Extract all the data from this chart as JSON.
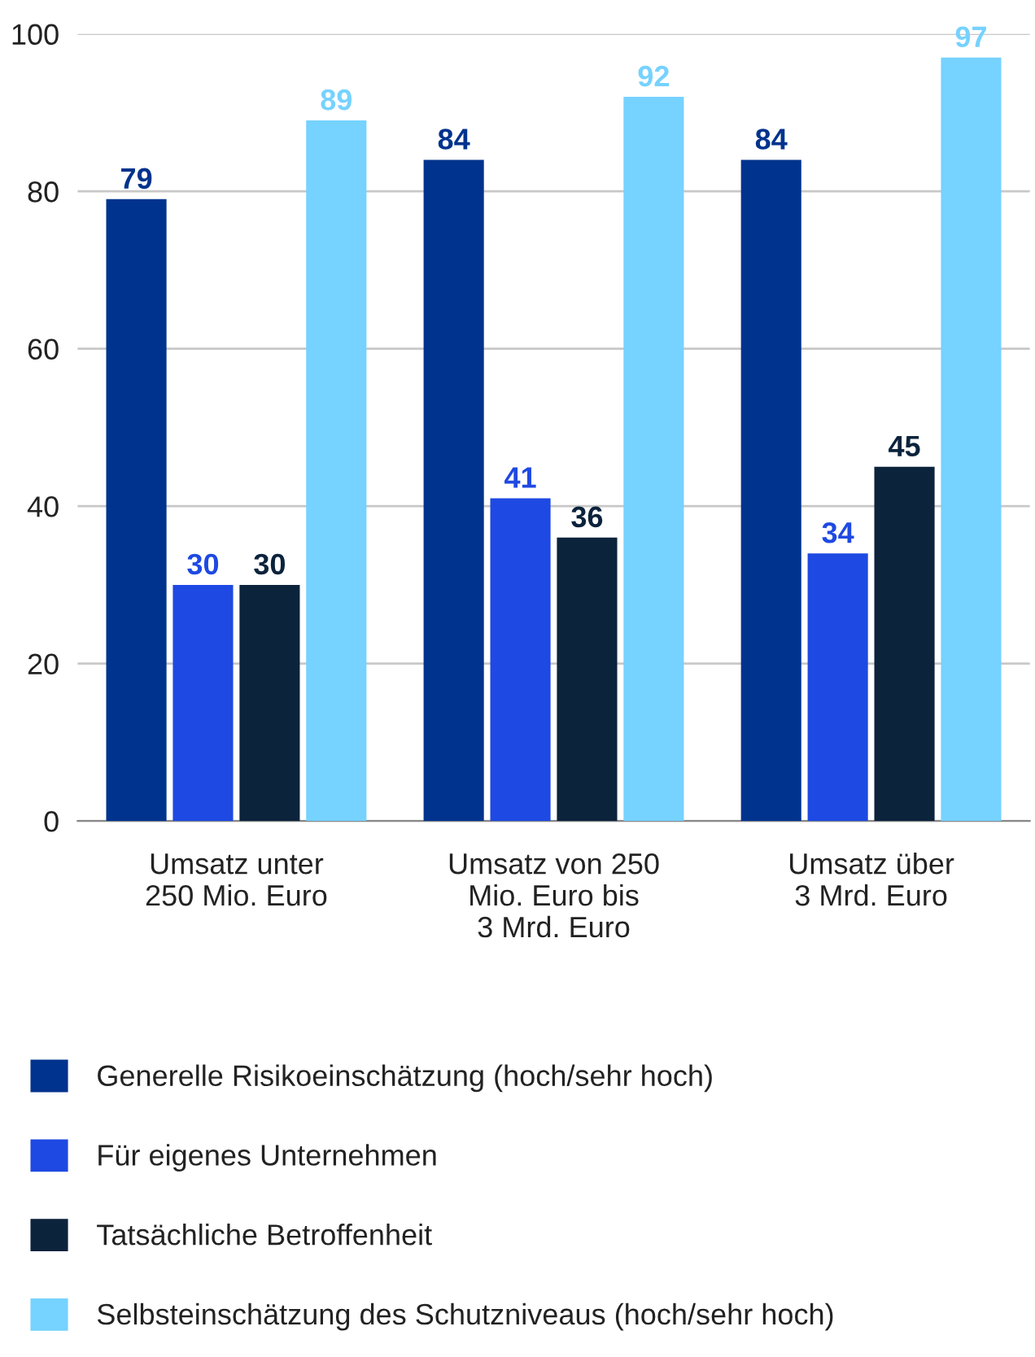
{
  "chart_data": {
    "type": "bar",
    "categories": [
      "Umsatz unter\n250 Mio. Euro",
      "Umsatz von 250\nMio. Euro bis\n3 Mrd. Euro",
      "Umsatz über\n3 Mrd. Euro"
    ],
    "series": [
      {
        "name": "Generelle Risikoeinschätzung (hoch/sehr hoch)",
        "color": "#00338d",
        "values": [
          79,
          84,
          84
        ]
      },
      {
        "name": "Für eigenes Unternehmen",
        "color": "#1e49e2",
        "values": [
          30,
          41,
          34
        ]
      },
      {
        "name": "Tatsächliche Betroffenheit",
        "color": "#0c233c",
        "values": [
          30,
          36,
          45
        ]
      },
      {
        "name": "Selbsteinschätzung des Schutzniveaus (hoch/sehr hoch)",
        "color": "#76d2ff",
        "values": [
          89,
          92,
          97
        ]
      }
    ],
    "ylim": [
      0,
      100
    ],
    "yticks": [
      0,
      20,
      40,
      60,
      80,
      100
    ],
    "grid": "y",
    "legend": "bottom",
    "data_labels": true
  }
}
